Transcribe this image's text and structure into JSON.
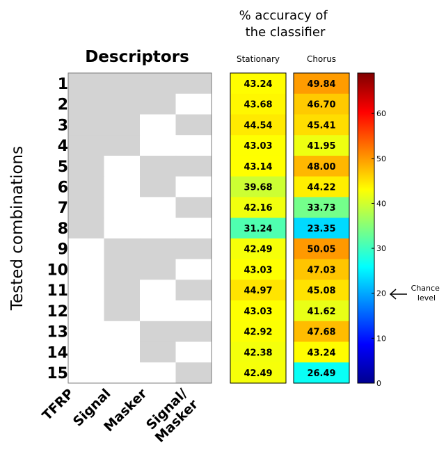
{
  "chart_data": [
    {
      "type": "table",
      "title": "Descriptors",
      "ylabel": "Tested combinations",
      "columns": [
        "TFRP",
        "Signal",
        "Masker",
        "Signal/\nMasker"
      ],
      "rows": [
        "1",
        "2",
        "3",
        "4",
        "5",
        "6",
        "7",
        "8",
        "9",
        "10",
        "11",
        "12",
        "13",
        "14",
        "15"
      ],
      "included": [
        [
          1,
          1,
          1,
          1
        ],
        [
          1,
          1,
          1,
          0
        ],
        [
          1,
          1,
          0,
          1
        ],
        [
          1,
          1,
          0,
          0
        ],
        [
          1,
          0,
          1,
          1
        ],
        [
          1,
          0,
          1,
          0
        ],
        [
          1,
          0,
          0,
          1
        ],
        [
          1,
          0,
          0,
          0
        ],
        [
          0,
          1,
          1,
          1
        ],
        [
          0,
          1,
          1,
          0
        ],
        [
          0,
          1,
          0,
          1
        ],
        [
          0,
          1,
          0,
          0
        ],
        [
          0,
          0,
          1,
          1
        ],
        [
          0,
          0,
          1,
          0
        ],
        [
          0,
          0,
          0,
          1
        ]
      ],
      "colors": {
        "included": "#d3d3d3",
        "excluded": "#ffffff",
        "border": "#7a7a7a"
      }
    },
    {
      "type": "heatmap",
      "title": "% accuracy of\nthe classifier",
      "columns": [
        "Stationary",
        "Chorus"
      ],
      "rows": [
        "1",
        "2",
        "3",
        "4",
        "5",
        "6",
        "7",
        "8",
        "9",
        "10",
        "11",
        "12",
        "13",
        "14",
        "15"
      ],
      "values": [
        [
          "43.24",
          "49.84"
        ],
        [
          "43.68",
          "46.70"
        ],
        [
          "44.54",
          "45.41"
        ],
        [
          "43.03",
          "41.95"
        ],
        [
          "43.14",
          "48.00"
        ],
        [
          "39.68",
          "44.22"
        ],
        [
          "42.16",
          "33.73"
        ],
        [
          "31.24",
          "23.35"
        ],
        [
          "42.49",
          "50.05"
        ],
        [
          "43.03",
          "47.03"
        ],
        [
          "44.97",
          "45.08"
        ],
        [
          "43.03",
          "41.62"
        ],
        [
          "42.92",
          "47.68"
        ],
        [
          "42.38",
          "43.24"
        ],
        [
          "42.49",
          "26.49"
        ]
      ],
      "colorbar": {
        "colormap": "jet",
        "range": [
          0,
          69
        ],
        "ticks": [
          0,
          10,
          20,
          30,
          40,
          50,
          60
        ],
        "annotation": "Chance\nlevel",
        "annotation_value": 20
      }
    }
  ]
}
